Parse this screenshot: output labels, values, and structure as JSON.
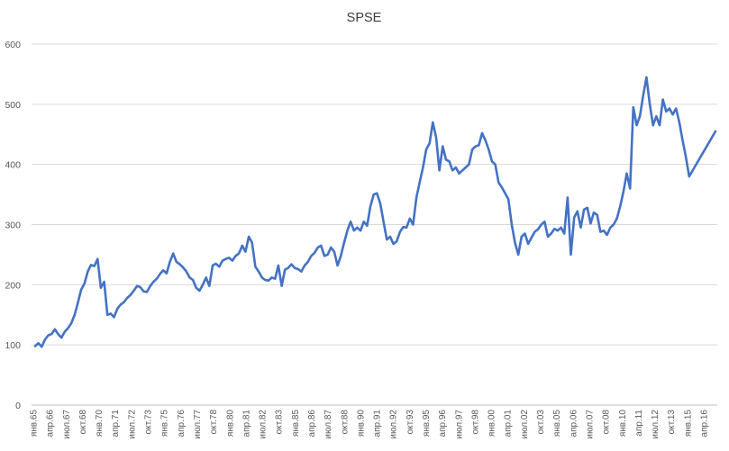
{
  "chart_data": {
    "type": "line",
    "title": "SPSE",
    "xlabel": "",
    "ylabel": "",
    "ylim": [
      0,
      600
    ],
    "yticks": [
      0,
      100,
      200,
      300,
      400,
      500,
      600
    ],
    "grid": "horizontal",
    "legend": "none",
    "x_tick_labels": [
      "янв.65",
      "апр.66",
      "июл.67",
      "окт.68",
      "янв.70",
      "апр.71",
      "июл.72",
      "окт.73",
      "янв.75",
      "апр.76",
      "июл.77",
      "окт.78",
      "янв.80",
      "апр.81",
      "июл.82",
      "окт.83",
      "янв.85",
      "апр.86",
      "июл.87",
      "окт.88",
      "янв.90",
      "апр.91",
      "июл.92",
      "окт.93",
      "янв.95",
      "апр.96",
      "июл.97",
      "окт.98",
      "янв.00",
      "апр.01",
      "июл.02",
      "окт.03",
      "янв.05",
      "апр.06",
      "июл.07",
      "окт.08",
      "янв.10",
      "апр.11",
      "июл.12",
      "окт.13",
      "янв.15",
      "апр.16"
    ],
    "series": [
      {
        "color": "#4472c4",
        "points": [
          [
            "янв.65",
            98
          ],
          [
            "апр.65",
            103
          ],
          [
            "июл.65",
            97
          ],
          [
            "окт.65",
            109
          ],
          [
            "янв.66",
            116
          ],
          [
            "апр.66",
            118
          ],
          [
            "июл.66",
            126
          ],
          [
            "окт.66",
            118
          ],
          [
            "янв.67",
            112
          ],
          [
            "апр.67",
            122
          ],
          [
            "июл.67",
            128
          ],
          [
            "окт.67",
            136
          ],
          [
            "янв.68",
            150
          ],
          [
            "апр.68",
            170
          ],
          [
            "июл.68",
            192
          ],
          [
            "окт.68",
            202
          ],
          [
            "янв.69",
            222
          ],
          [
            "апр.69",
            233
          ],
          [
            "июл.69",
            231
          ],
          [
            "окт.69",
            243
          ],
          [
            "янв.70",
            195
          ],
          [
            "апр.70",
            205
          ],
          [
            "июл.70",
            150
          ],
          [
            "окт.70",
            152
          ],
          [
            "янв.71",
            146
          ],
          [
            "апр.71",
            160
          ],
          [
            "июл.71",
            167
          ],
          [
            "окт.71",
            171
          ],
          [
            "янв.72",
            178
          ],
          [
            "апр.72",
            183
          ],
          [
            "июл.72",
            190
          ],
          [
            "окт.72",
            198
          ],
          [
            "янв.73",
            196
          ],
          [
            "апр.73",
            189
          ],
          [
            "июл.73",
            188
          ],
          [
            "окт.73",
            198
          ],
          [
            "янв.74",
            205
          ],
          [
            "апр.74",
            210
          ],
          [
            "июл.74",
            218
          ],
          [
            "окт.74",
            224
          ],
          [
            "янв.75",
            219
          ],
          [
            "апр.75",
            238
          ],
          [
            "июл.75",
            252
          ],
          [
            "окт.75",
            238
          ],
          [
            "янв.76",
            234
          ],
          [
            "апр.76",
            229
          ],
          [
            "июл.76",
            222
          ],
          [
            "окт.76",
            212
          ],
          [
            "янв.77",
            208
          ],
          [
            "апр.77",
            195
          ],
          [
            "июл.77",
            190
          ],
          [
            "окт.77",
            200
          ],
          [
            "янв.78",
            212
          ],
          [
            "апр.78",
            198
          ],
          [
            "июл.78",
            232
          ],
          [
            "окт.78",
            235
          ],
          [
            "янв.79",
            230
          ],
          [
            "апр.79",
            240
          ],
          [
            "июл.79",
            243
          ],
          [
            "окт.79",
            245
          ],
          [
            "янв.80",
            240
          ],
          [
            "апр.80",
            248
          ],
          [
            "июл.80",
            252
          ],
          [
            "окт.80",
            265
          ],
          [
            "янв.81",
            255
          ],
          [
            "апр.81",
            280
          ],
          [
            "июл.81",
            270
          ],
          [
            "окт.81",
            230
          ],
          [
            "янв.82",
            222
          ],
          [
            "апр.82",
            212
          ],
          [
            "июл.82",
            208
          ],
          [
            "окт.82",
            207
          ],
          [
            "янв.83",
            212
          ],
          [
            "апр.83",
            210
          ],
          [
            "июл.83",
            232
          ],
          [
            "окт.83",
            198
          ],
          [
            "янв.84",
            225
          ],
          [
            "апр.84",
            228
          ],
          [
            "июл.84",
            234
          ],
          [
            "окт.84",
            228
          ],
          [
            "янв.85",
            226
          ],
          [
            "апр.85",
            222
          ],
          [
            "июл.85",
            232
          ],
          [
            "окт.85",
            238
          ],
          [
            "янв.86",
            248
          ],
          [
            "апр.86",
            253
          ],
          [
            "июл.86",
            262
          ],
          [
            "окт.86",
            265
          ],
          [
            "янв.87",
            248
          ],
          [
            "апр.87",
            250
          ],
          [
            "июл.87",
            262
          ],
          [
            "окт.87",
            255
          ],
          [
            "янв.88",
            232
          ],
          [
            "апр.88",
            248
          ],
          [
            "июл.88",
            270
          ],
          [
            "окт.88",
            290
          ],
          [
            "янв.89",
            305
          ],
          [
            "апр.89",
            290
          ],
          [
            "июл.89",
            295
          ],
          [
            "окт.89",
            290
          ],
          [
            "янв.90",
            305
          ],
          [
            "апр.90",
            298
          ],
          [
            "июл.90",
            330
          ],
          [
            "окт.90",
            350
          ],
          [
            "янв.91",
            352
          ],
          [
            "апр.91",
            335
          ],
          [
            "июл.91",
            305
          ],
          [
            "окт.91",
            275
          ],
          [
            "янв.92",
            280
          ],
          [
            "апр.92",
            268
          ],
          [
            "июл.92",
            272
          ],
          [
            "окт.92",
            288
          ],
          [
            "янв.93",
            296
          ],
          [
            "апр.93",
            295
          ],
          [
            "июл.93",
            310
          ],
          [
            "окт.93",
            300
          ],
          [
            "янв.94",
            345
          ],
          [
            "апр.94",
            370
          ],
          [
            "июл.94",
            395
          ],
          [
            "окт.94",
            425
          ],
          [
            "янв.95",
            435
          ],
          [
            "апр.95",
            470
          ],
          [
            "июл.95",
            445
          ],
          [
            "окт.95",
            390
          ],
          [
            "янв.96",
            430
          ],
          [
            "апр.96",
            408
          ],
          [
            "июл.96",
            405
          ],
          [
            "окт.96",
            390
          ],
          [
            "янв.97",
            395
          ],
          [
            "апр.97",
            385
          ],
          [
            "июл.97",
            390
          ],
          [
            "окт.97",
            395
          ],
          [
            "янв.98",
            400
          ],
          [
            "апр.98",
            425
          ],
          [
            "июл.98",
            430
          ],
          [
            "окт.98",
            432
          ],
          [
            "янв.99",
            452
          ],
          [
            "апр.99",
            440
          ],
          [
            "июл.99",
            425
          ],
          [
            "окт.99",
            405
          ],
          [
            "янв.00",
            400
          ],
          [
            "апр.00",
            370
          ],
          [
            "июл.00",
            362
          ],
          [
            "окт.00",
            352
          ],
          [
            "янв.01",
            342
          ],
          [
            "апр.01",
            300
          ],
          [
            "июл.01",
            270
          ],
          [
            "окт.01",
            250
          ],
          [
            "янв.02",
            280
          ],
          [
            "апр.02",
            285
          ],
          [
            "июл.02",
            268
          ],
          [
            "окт.02",
            278
          ],
          [
            "янв.03",
            288
          ],
          [
            "апр.03",
            292
          ],
          [
            "июл.03",
            300
          ],
          [
            "окт.03",
            305
          ],
          [
            "янв.04",
            280
          ],
          [
            "апр.04",
            285
          ],
          [
            "июл.04",
            293
          ],
          [
            "окт.04",
            290
          ],
          [
            "янв.05",
            295
          ],
          [
            "апр.05",
            285
          ],
          [
            "июл.05",
            345
          ],
          [
            "окт.05",
            250
          ],
          [
            "янв.06",
            312
          ],
          [
            "апр.06",
            322
          ],
          [
            "июл.06",
            295
          ],
          [
            "окт.06",
            325
          ],
          [
            "янв.07",
            328
          ],
          [
            "апр.07",
            302
          ],
          [
            "июл.07",
            320
          ],
          [
            "окт.07",
            316
          ],
          [
            "янв.08",
            288
          ],
          [
            "апр.08",
            290
          ],
          [
            "июл.08",
            283
          ],
          [
            "окт.08",
            295
          ],
          [
            "янв.09",
            300
          ],
          [
            "апр.09",
            310
          ],
          [
            "июл.09",
            330
          ],
          [
            "окт.09",
            355
          ],
          [
            "янв.10",
            385
          ],
          [
            "апр.10",
            360
          ],
          [
            "июл.10",
            495
          ],
          [
            "окт.10",
            465
          ],
          [
            "янв.11",
            480
          ],
          [
            "апр.11",
            515
          ],
          [
            "июл.11",
            545
          ],
          [
            "окт.11",
            500
          ],
          [
            "янв.12",
            465
          ],
          [
            "апр.12",
            480
          ],
          [
            "июл.12",
            465
          ],
          [
            "окт.12",
            508
          ],
          [
            "янв.13",
            488
          ],
          [
            "апр.13",
            493
          ],
          [
            "июл.13",
            483
          ],
          [
            "окт.13",
            493
          ],
          [
            "янв.14",
            470
          ],
          [
            "апр.14",
            440
          ],
          [
            "июл.14",
            412
          ],
          [
            "окт.14",
            380
          ],
          [
            "окт.16",
            455
          ]
        ]
      }
    ]
  }
}
